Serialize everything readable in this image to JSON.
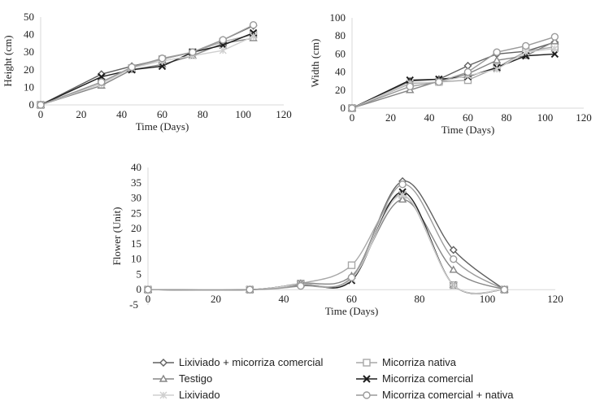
{
  "series_styles": [
    {
      "name": "Lixiviado + micorriza comercial",
      "marker": "diamond",
      "color": "#606060"
    },
    {
      "name": "Micorriza nativa",
      "marker": "square",
      "color": "#a8a8a8"
    },
    {
      "name": "Testigo",
      "marker": "triangle",
      "color": "#858585"
    },
    {
      "name": "Micorriza comercial",
      "marker": "x",
      "color": "#1e1e1e"
    },
    {
      "name": "Lixiviado",
      "marker": "asterisk",
      "color": "#cfcfcf"
    },
    {
      "name": "Micorriza comercial + nativa",
      "marker": "circle",
      "color": "#9a9a9a"
    }
  ],
  "chart_data": [
    {
      "type": "line",
      "xlabel": "Time (Days)",
      "ylabel": "Height (cm)",
      "xlim": [
        0,
        120
      ],
      "ylim": [
        0,
        50
      ],
      "xticks": [
        0,
        20,
        40,
        60,
        80,
        100,
        120
      ],
      "yticks": [
        0,
        10,
        20,
        30,
        40,
        50
      ],
      "grid": false,
      "smooth": false,
      "x": [
        0,
        30,
        45,
        60,
        75,
        90,
        105
      ],
      "series": [
        {
          "name": "Lixiviado + micorriza comercial",
          "values": [
            0,
            17.5,
            22,
            26,
            30,
            37,
            45
          ]
        },
        {
          "name": "Micorriza nativa",
          "values": [
            0,
            13,
            21,
            26,
            30,
            36,
            40
          ]
        },
        {
          "name": "Testigo",
          "values": [
            0,
            11,
            20,
            23,
            28,
            35,
            38
          ]
        },
        {
          "name": "Micorriza comercial",
          "values": [
            0,
            16,
            20,
            22,
            30,
            34,
            41
          ]
        },
        {
          "name": "Lixiviado",
          "values": [
            0,
            12,
            21,
            25,
            28,
            31,
            39
          ]
        },
        {
          "name": "Micorriza comercial + nativa",
          "values": [
            0,
            13,
            21.5,
            26.5,
            30,
            37,
            45.5
          ]
        }
      ]
    },
    {
      "type": "line",
      "xlabel": "Time (Days)",
      "ylabel": "Width (cm)",
      "xlim": [
        0,
        120
      ],
      "ylim": [
        0,
        100
      ],
      "xticks": [
        0,
        20,
        40,
        60,
        80,
        100,
        120
      ],
      "yticks": [
        0,
        20,
        40,
        60,
        80,
        100
      ],
      "grid": false,
      "smooth": false,
      "x": [
        0,
        30,
        45,
        60,
        75,
        90,
        105
      ],
      "series": [
        {
          "name": "Lixiviado + micorriza comercial",
          "values": [
            0,
            30,
            32,
            47,
            60,
            63,
            73
          ]
        },
        {
          "name": "Micorriza nativa",
          "values": [
            0,
            27,
            29,
            31,
            45,
            63,
            68
          ]
        },
        {
          "name": "Testigo",
          "values": [
            0,
            20,
            30,
            38,
            53,
            58,
            74
          ]
        },
        {
          "name": "Micorriza comercial",
          "values": [
            0,
            31,
            32,
            35,
            45,
            58,
            60
          ]
        },
        {
          "name": "Lixiviado",
          "values": [
            0,
            28,
            29,
            36,
            43,
            62,
            66
          ]
        },
        {
          "name": "Micorriza comercial + nativa",
          "values": [
            0,
            24,
            29,
            40,
            62,
            69,
            79
          ]
        }
      ]
    },
    {
      "type": "line",
      "xlabel": "Time (Days)",
      "ylabel": "Flower (Unit)",
      "xlim": [
        0,
        120
      ],
      "ylim": [
        -5,
        40
      ],
      "xticks": [
        0,
        20,
        40,
        60,
        80,
        100,
        120
      ],
      "yticks": [
        -5,
        0,
        5,
        10,
        15,
        20,
        25,
        30,
        35,
        40
      ],
      "grid": false,
      "smooth": true,
      "x": [
        0,
        30,
        45,
        60,
        75,
        90,
        105
      ],
      "series": [
        {
          "name": "Lixiviado + micorriza comercial",
          "values": [
            0,
            0,
            1.5,
            4,
            35.5,
            13,
            0
          ]
        },
        {
          "name": "Micorriza nativa",
          "values": [
            0,
            0,
            2,
            8,
            31,
            1.5,
            0
          ]
        },
        {
          "name": "Testigo",
          "values": [
            0,
            0,
            2,
            4.5,
            29.5,
            6.5,
            0
          ]
        },
        {
          "name": "Micorriza comercial",
          "values": [
            0,
            0,
            1.8,
            3,
            32,
            1.5,
            0
          ]
        },
        {
          "name": "Lixiviado",
          "values": [
            0,
            0,
            1.8,
            3.5,
            31,
            1.5,
            0
          ]
        },
        {
          "name": "Micorriza comercial + nativa",
          "values": [
            0,
            0,
            1.2,
            4,
            34.5,
            10,
            0
          ]
        }
      ]
    }
  ],
  "legend": {
    "placement": "bottom",
    "items": [
      "Lixiviado + micorriza comercial",
      "Micorriza nativa",
      "Testigo",
      "Micorriza comercial",
      "Lixiviado",
      "Micorriza comercial + nativa"
    ]
  }
}
